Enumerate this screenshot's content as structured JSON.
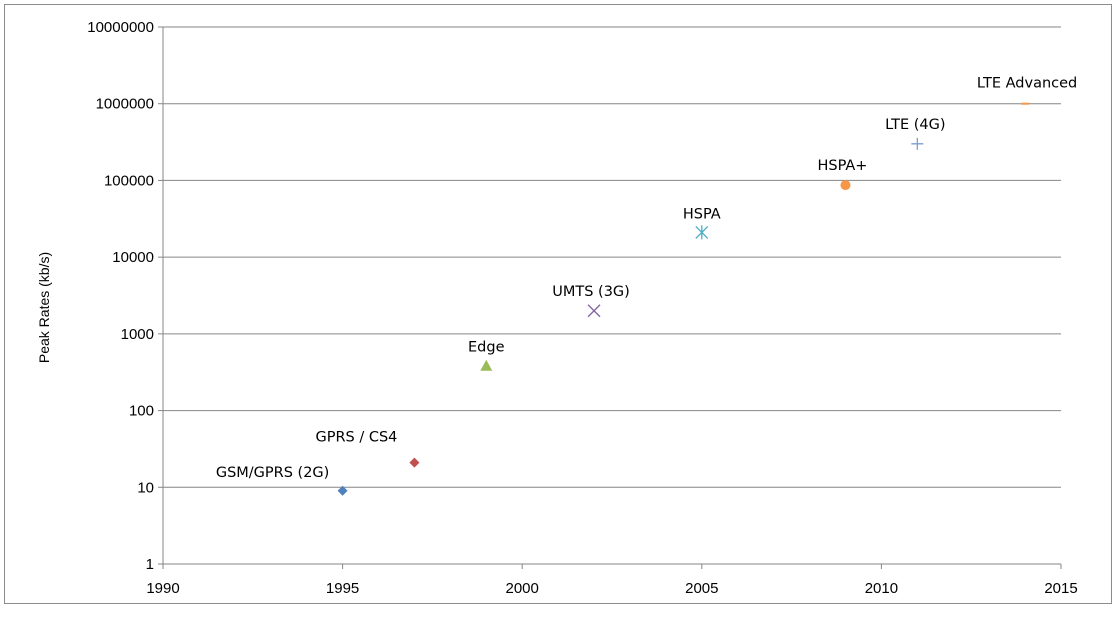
{
  "chart_data": {
    "type": "scatter",
    "title": "",
    "xlabel": "",
    "ylabel": "Peak Rates (kb/s)",
    "xlim": [
      1990,
      2015
    ],
    "ylim": [
      1,
      10000000
    ],
    "y_scale": "log",
    "x_ticks": [
      1990,
      1995,
      2000,
      2005,
      2010,
      2015
    ],
    "y_ticks": [
      1,
      10,
      100,
      1000,
      10000,
      100000,
      1000000,
      10000000
    ],
    "grid": "horizontal",
    "legend": "none",
    "points": [
      {
        "label": "GSM/GPRS (2G)",
        "x": 1995,
        "y": 9,
        "marker": "diamond",
        "color": "#4f81bd"
      },
      {
        "label": "GPRS / CS4",
        "x": 1997,
        "y": 21,
        "marker": "diamond",
        "color": "#c0504d"
      },
      {
        "label": "Edge",
        "x": 1999,
        "y": 384,
        "marker": "triangle",
        "color": "#9bbb59"
      },
      {
        "label": "UMTS (3G)",
        "x": 2002,
        "y": 2000,
        "marker": "x",
        "color": "#8064a2"
      },
      {
        "label": "HSPA",
        "x": 2005,
        "y": 21000,
        "marker": "asterisk",
        "color": "#4bacc6"
      },
      {
        "label": "HSPA+",
        "x": 2009,
        "y": 87000,
        "marker": "circle",
        "color": "#f79646"
      },
      {
        "label": "LTE (4G)",
        "x": 2011,
        "y": 300000,
        "marker": "plus",
        "color": "#7c9fd4"
      },
      {
        "label": "LTE Advanced",
        "x": 2014,
        "y": 1000000,
        "marker": "dash",
        "color": "#f79646"
      }
    ]
  }
}
